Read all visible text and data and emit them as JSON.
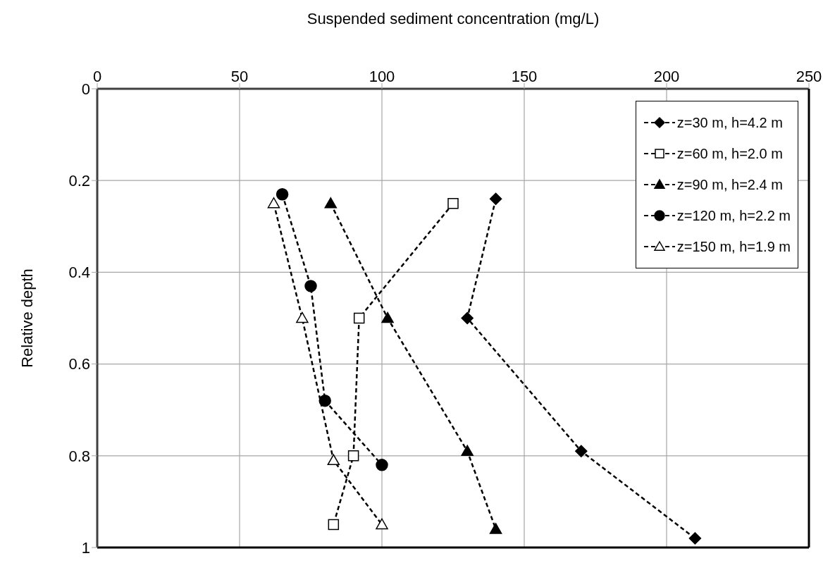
{
  "chart_data": {
    "type": "line",
    "xlabel": "Suspended sediment concentration  (mg/L)",
    "ylabel": "Relative depth",
    "xlim": [
      0,
      250
    ],
    "xticks": [
      0,
      50,
      100,
      150,
      200,
      250
    ],
    "ylim": [
      1,
      0
    ],
    "yticks": [
      0,
      0.2,
      0.4,
      0.6,
      0.8,
      1
    ],
    "grid": true,
    "legend": "top right",
    "line_style": "dashed",
    "series": [
      {
        "name": "z=30 m, h=4.2 m",
        "color": "#000000",
        "marker": "diamond",
        "x": [
          140,
          130,
          170,
          210
        ],
        "values": [
          0.24,
          0.5,
          0.79,
          0.98
        ]
      },
      {
        "name": "z=60 m, h=2.0 m",
        "color": "#000000",
        "marker": "square-open",
        "x": [
          125,
          92,
          90,
          83
        ],
        "values": [
          0.25,
          0.5,
          0.8,
          0.95
        ]
      },
      {
        "name": "z=90 m, h=2.4 m",
        "color": "#000000",
        "marker": "triangle",
        "x": [
          82,
          102,
          130,
          140
        ],
        "values": [
          0.25,
          0.5,
          0.79,
          0.96
        ]
      },
      {
        "name": "z=120 m, h=2.2 m",
        "color": "#000000",
        "marker": "circle",
        "x": [
          65,
          75,
          80,
          100
        ],
        "values": [
          0.23,
          0.43,
          0.68,
          0.82
        ]
      },
      {
        "name": "z=150 m, h=1.9 m",
        "color": "#000000",
        "marker": "triangle-open",
        "x": [
          62,
          72,
          83,
          100
        ],
        "values": [
          0.25,
          0.5,
          0.81,
          0.95
        ]
      }
    ]
  }
}
